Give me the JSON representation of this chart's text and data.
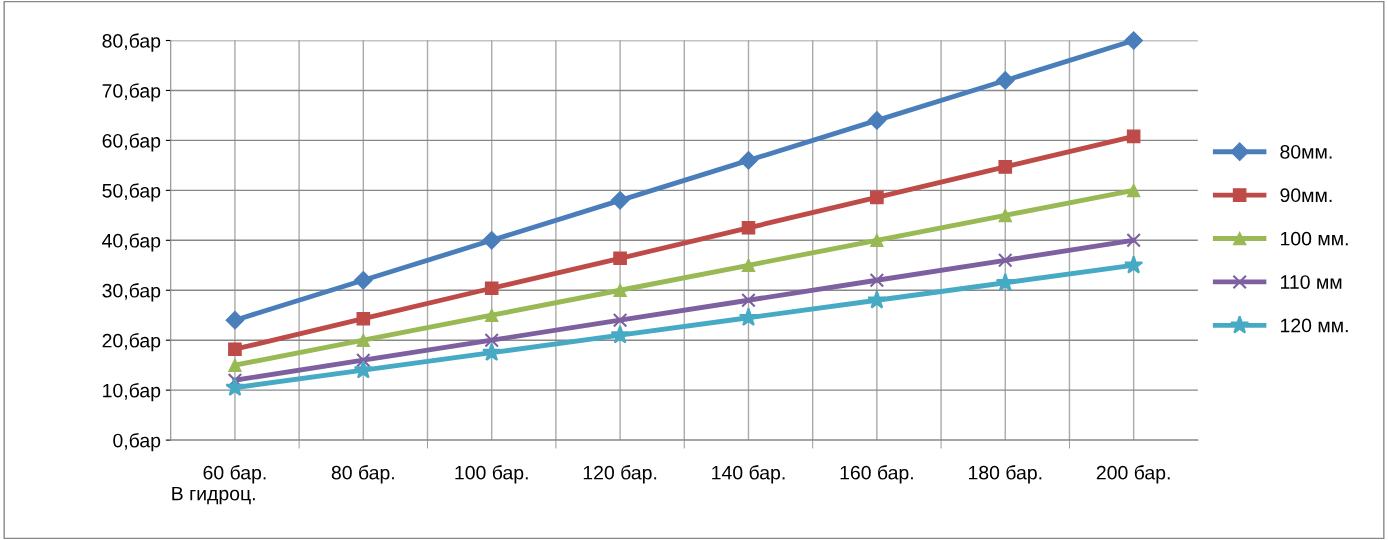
{
  "chart_data": {
    "type": "line",
    "xlabel": "В гидроц.",
    "categories": [
      "60 бар.",
      "80 бар.",
      "100 бар.",
      "120 бар.",
      "140 бар.",
      "160 бар.",
      "180 бар.",
      "200 бар."
    ],
    "series": [
      {
        "name": "80мм.",
        "color": "#4a7ebb",
        "marker": "diamond",
        "values": [
          24,
          32,
          40,
          48,
          56,
          64,
          72,
          80
        ]
      },
      {
        "name": "90мм.",
        "color": "#be4b48",
        "marker": "square",
        "values": [
          18.2,
          24.3,
          30.4,
          36.4,
          42.5,
          48.6,
          54.7,
          60.8
        ]
      },
      {
        "name": "100 мм.",
        "color": "#98b954",
        "marker": "triangle",
        "values": [
          15,
          20,
          25,
          30,
          35,
          40,
          45,
          50
        ]
      },
      {
        "name": "110 мм",
        "color": "#7d60a0",
        "marker": "cross",
        "values": [
          12,
          16,
          20,
          24,
          28,
          32,
          36,
          40
        ]
      },
      {
        "name": "120 мм.",
        "color": "#46aac5",
        "marker": "star",
        "values": [
          10.5,
          14,
          17.5,
          21,
          24.5,
          28,
          31.5,
          35
        ]
      }
    ],
    "ylim": [
      0,
      80
    ],
    "yticks": [
      {
        "value": 0,
        "label": "0,бар"
      },
      {
        "value": 10,
        "label": "10,бар"
      },
      {
        "value": 20,
        "label": "20,бар"
      },
      {
        "value": 30,
        "label": "30,бар"
      },
      {
        "value": 40,
        "label": "40,бар"
      },
      {
        "value": 50,
        "label": "50,бар"
      },
      {
        "value": 60,
        "label": "60,бар"
      },
      {
        "value": 70,
        "label": "70,бар"
      },
      {
        "value": 80,
        "label": "80,бар"
      }
    ],
    "grid": true,
    "legend": "right"
  }
}
